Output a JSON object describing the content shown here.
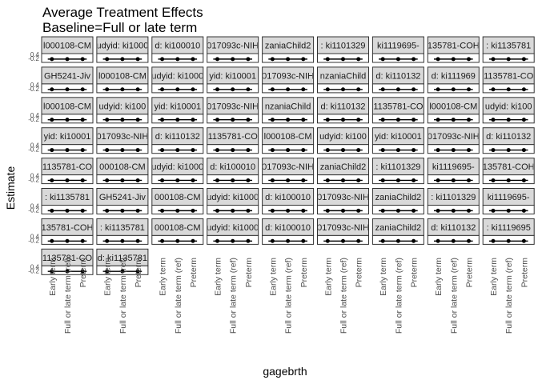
{
  "chart_data": {
    "type": "scatter",
    "title": "Average Treatment Effects",
    "subtitle": "Baseline=Full or late term",
    "xlabel": "gagebrth",
    "ylabel": "Estimate",
    "categories": [
      "Early term",
      "Full or late term (ref)",
      "Preterm"
    ],
    "y_ticks": [
      "-0.2",
      "0.2",
      "0.4"
    ],
    "ylim": [
      -0.3,
      0.5
    ],
    "grid": false,
    "facet_rows": 8,
    "facet_cols": 9,
    "strip_labels": [
      [
        "l000108-CM",
        "udyid: ki1000",
        "d: ki100010",
        "017093c-NIH",
        "zaniaChild2",
        ": ki1101329",
        "ki1119695-",
        "135781-COH",
        ": ki1135781"
      ],
      [
        "GH5241-Jiv",
        "l000108-CM",
        "udyid: ki1000",
        "yid: ki10001",
        "017093c-NIH",
        "nzaniaChild",
        "d: ki110132",
        "d: ki111969",
        "1135781-CO"
      ],
      [
        "l000108-CM",
        "udyid: ki100",
        "yid: ki10001",
        "017093c-NIH",
        "nzaniaChild",
        "d: ki110132",
        "1135781-CO",
        "l000108-CM",
        "udyid: ki100"
      ],
      [
        "yid: ki10001",
        "017093c-NIH",
        "d: ki110132",
        "1135781-CO",
        "l000108-CM",
        "udyid: ki100",
        "yid: ki10001",
        "017093c-NIH",
        "d: ki110132"
      ],
      [
        "1135781-CO",
        "000108-CM",
        "udyid: ki1000",
        "d: ki100010",
        "017093c-NIH",
        "zaniaChild2",
        ": ki1101329",
        "ki1119695-",
        "135781-COH"
      ],
      [
        ": ki1135781",
        "GH5241-Jiv",
        "000108-CM",
        "udyid: ki1000",
        "d: ki100010",
        "017093c-NIH",
        "zaniaChild2",
        ": ki1101329",
        "ki1119695-"
      ],
      [
        "135781-COH",
        ": ki1135781",
        "000108-CM",
        "udyid: ki1000",
        "d: ki100010",
        "017093c-NIH",
        "zaniaChild2",
        "d: ki110132",
        ": ki1119695"
      ],
      [
        "1135781-CO",
        "d: ki1135781"
      ]
    ],
    "series": [
      {
        "values": [
          0,
          0,
          0
        ]
      }
    ],
    "point_color": "#000000",
    "strip_fill": "#d9d9d9",
    "panel_border": "#333333"
  }
}
